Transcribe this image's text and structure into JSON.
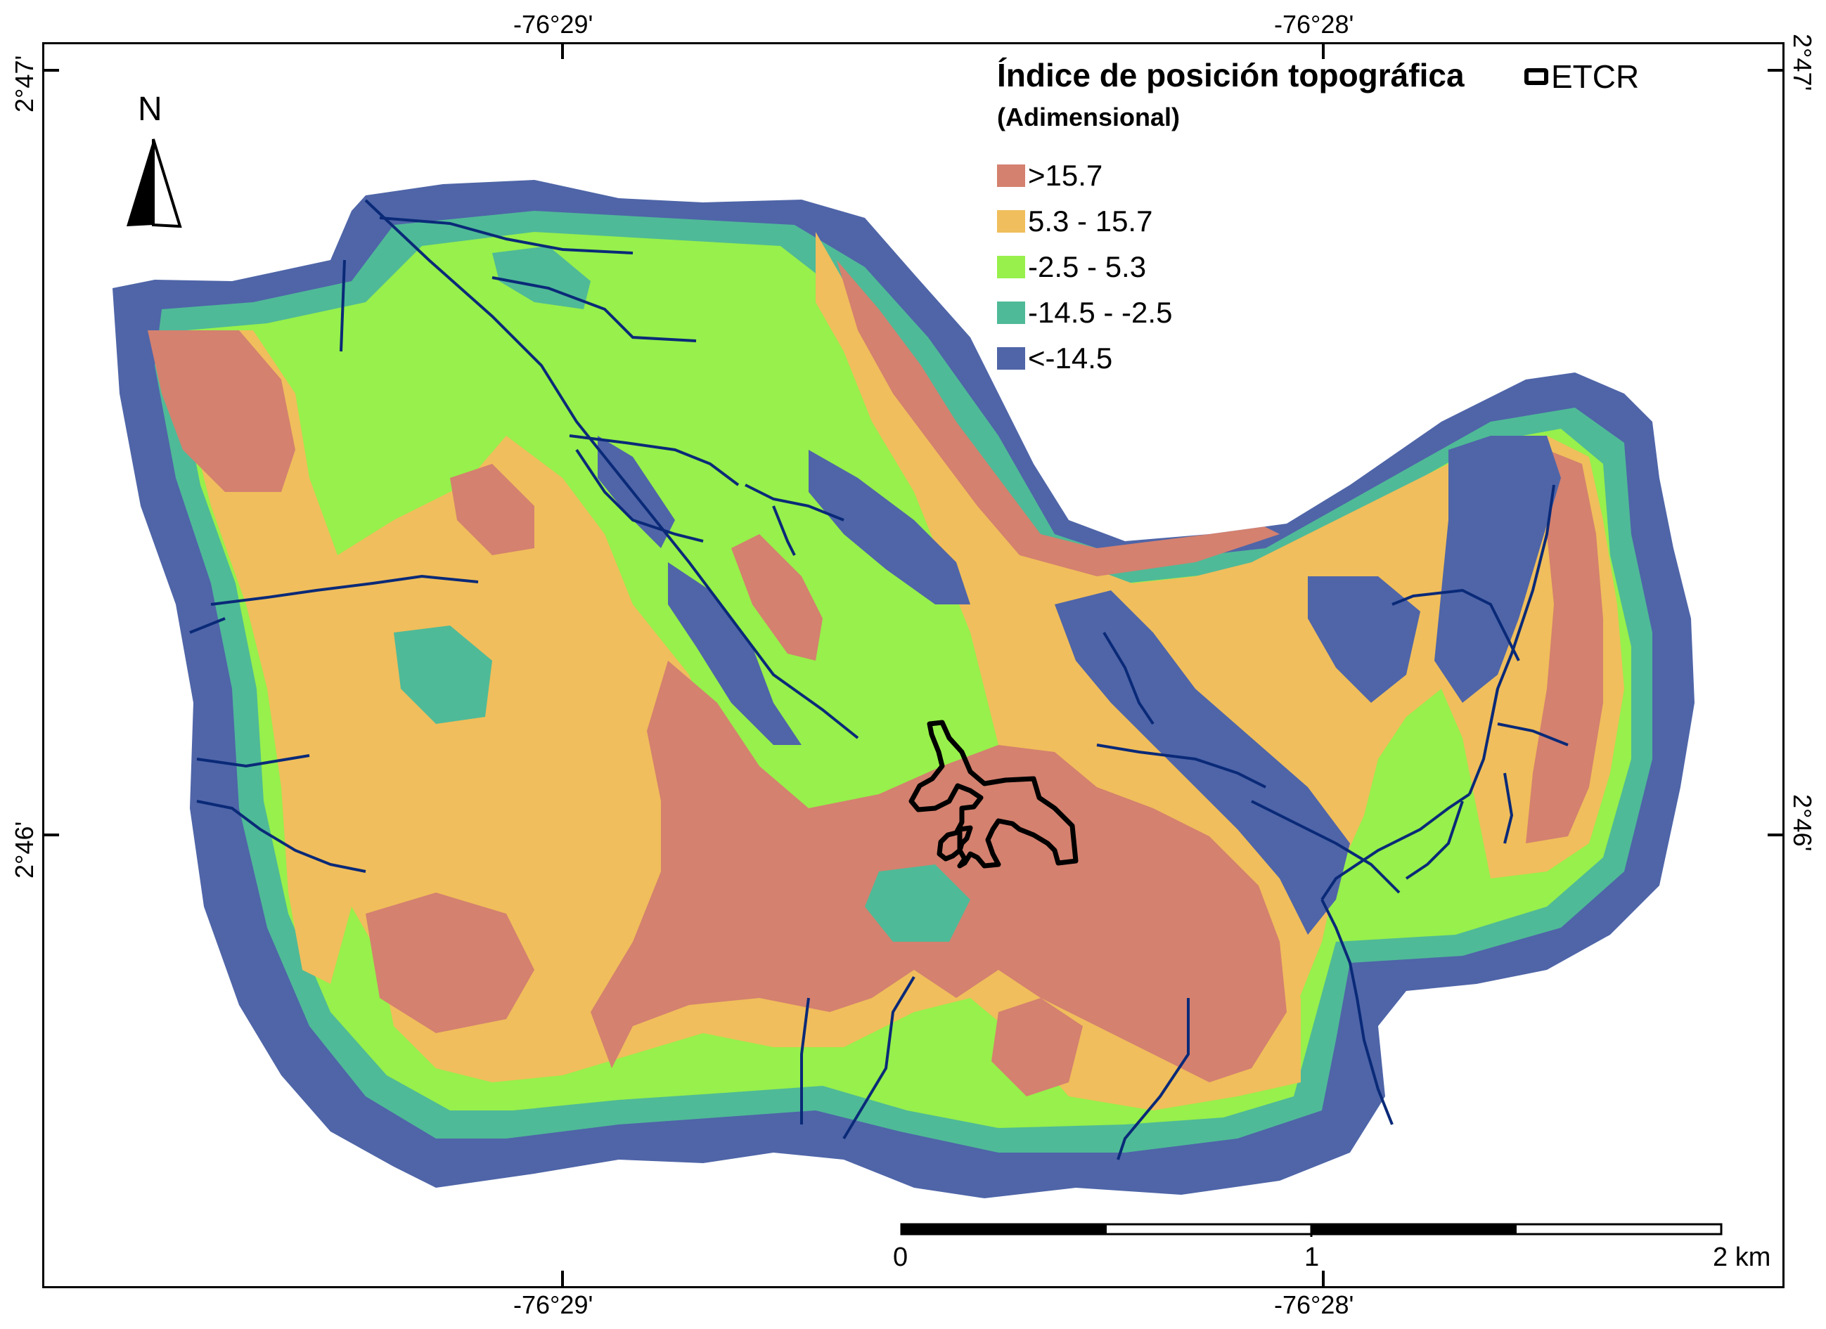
{
  "map": {
    "legend": {
      "title": "Índice de posición topográfica",
      "subtitle": "(Adimensional)",
      "etcr_label": "ETCR",
      "classes": [
        {
          "label": ">15.7",
          "color": "#d4816f"
        },
        {
          "label": "5.3 - 15.7",
          "color": "#f0be5c"
        },
        {
          "label": "-2.5 - 5.3",
          "color": "#97f04b"
        },
        {
          "label": "-14.5 - -2.5",
          "color": "#4fba97"
        },
        {
          "label": "<-14.5",
          "color": "#4f65a8"
        }
      ]
    },
    "north_label": "N",
    "graticule": {
      "top_ticks": [
        "-76°29'",
        "-76°28'"
      ],
      "bottom_ticks": [
        "-76°29'",
        "-76°28'"
      ],
      "left_ticks": [
        "2°47'",
        "2°46'"
      ],
      "right_ticks": [
        "2°47'",
        "2°46'"
      ]
    },
    "scale_bar": {
      "labels": [
        "0",
        "1",
        "2 km"
      ]
    },
    "colors": {
      "stream": "#0a2a78",
      "boundary": "#000000"
    }
  }
}
